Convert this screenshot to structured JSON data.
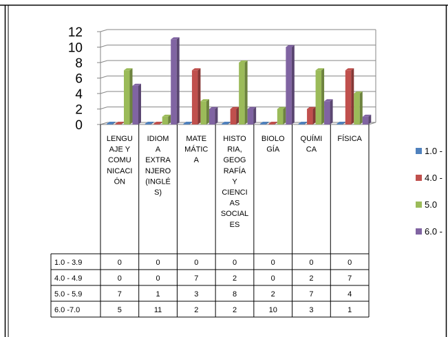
{
  "header_text": "",
  "chart_data": {
    "type": "bar",
    "title": "",
    "xlabel": "",
    "ylabel": "",
    "ylim": [
      0,
      12
    ],
    "yticks": [
      0,
      2,
      4,
      6,
      8,
      10,
      12
    ],
    "grid": true,
    "legend_position": "right",
    "categories": [
      [
        "LENGU",
        "AJE Y",
        "COMU",
        "NICACI",
        "ÓN"
      ],
      [
        "IDIOM",
        "A",
        "EXTRA",
        "NJERO",
        "(INGLÉ",
        "S)"
      ],
      [
        "MATE",
        "MÁTIC",
        "A"
      ],
      [
        "HISTO",
        "RIA,",
        "GEOG",
        "RAFÍA",
        "Y",
        "CIENCI",
        "AS",
        "SOCIAL",
        "ES"
      ],
      [
        "BIOLO",
        "GÍA"
      ],
      [
        "QUÍMI",
        "CA"
      ],
      [
        "FÍSICA"
      ]
    ],
    "series": [
      {
        "name": "1.0 - 3.9",
        "legend_label": "1.0 -",
        "color": "#4F81BD",
        "values": [
          0,
          0,
          0,
          0,
          0,
          0,
          0
        ]
      },
      {
        "name": "4.0 - 4.9",
        "legend_label": "4.0 -",
        "color": "#C0504D",
        "values": [
          0,
          0,
          7,
          2,
          0,
          2,
          7
        ]
      },
      {
        "name": "5.0 - 5.9",
        "legend_label": "5.0",
        "color": "#9BBB59",
        "values": [
          7,
          1,
          3,
          8,
          2,
          7,
          4
        ]
      },
      {
        "name": "6.0 -7.0",
        "legend_label": "6.0 -",
        "color": "#8064A2",
        "values": [
          5,
          11,
          2,
          2,
          10,
          3,
          1
        ]
      }
    ]
  }
}
